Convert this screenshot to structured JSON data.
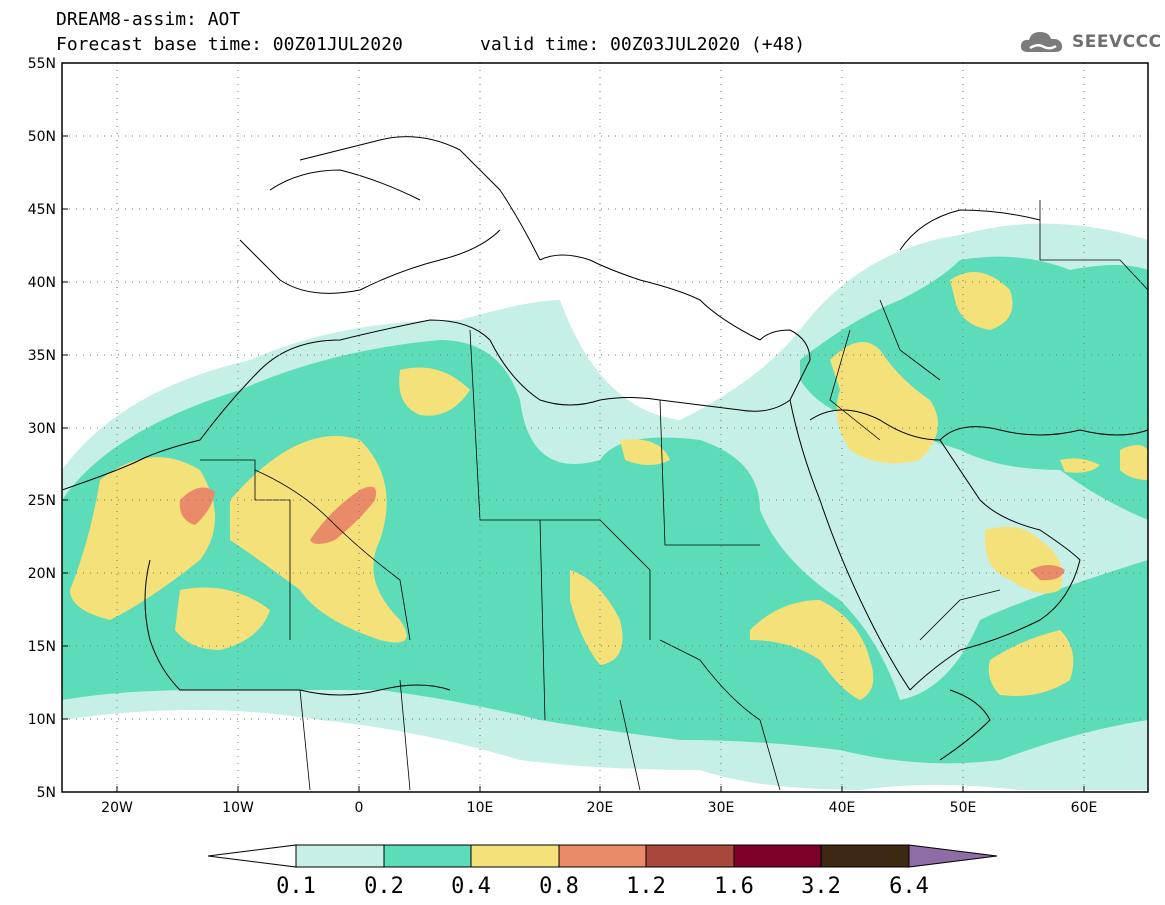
{
  "header": {
    "line1": "DREAM8-assim: AOT",
    "line2": "Forecast base time: 00Z01JUL2020",
    "line3": "valid time: 00Z03JUL2020 (+48)"
  },
  "logo": {
    "text": "SEEVCCC",
    "icon": "cloud-icon"
  },
  "map": {
    "lon_range": [
      -25,
      65
    ],
    "lat_range": [
      5,
      55
    ],
    "lat_labels": [
      "55N",
      "50N",
      "45N",
      "40N",
      "35N",
      "30N",
      "25N",
      "20N",
      "15N",
      "10N",
      "5N"
    ],
    "lon_labels": [
      "20W",
      "10W",
      "0",
      "10E",
      "20E",
      "30E",
      "40E",
      "50E",
      "60E"
    ],
    "grid": "dotted"
  },
  "legend": {
    "labels": [
      "0.1",
      "0.2",
      "0.4",
      "0.8",
      "1.2",
      "1.6",
      "3.2",
      "6.4"
    ],
    "colors": [
      "#ffffff",
      "#c6efe8",
      "#5ddcb9",
      "#f5e17a",
      "#e98a68",
      "#a9473d",
      "#7c0028",
      "#3d2813",
      "#8e6ca6"
    ]
  }
}
